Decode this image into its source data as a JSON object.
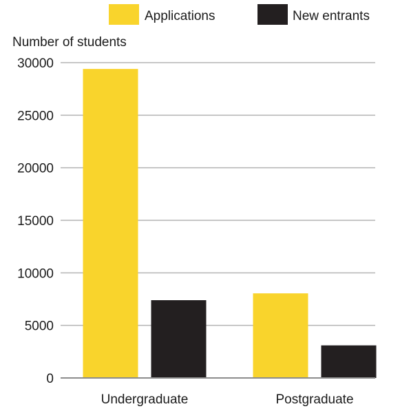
{
  "chart_data": {
    "type": "bar",
    "title": "",
    "xlabel": "",
    "ylabel": "Number of students",
    "categories": [
      "Undergraduate",
      "Postgraduate"
    ],
    "series": [
      {
        "name": "Applications",
        "values": [
          29400,
          8050
        ],
        "color": "#f9d42c"
      },
      {
        "name": "New entrants",
        "values": [
          7400,
          3100
        ],
        "color": "#231f20"
      }
    ],
    "ylim": [
      0,
      30000
    ],
    "yticks": [
      0,
      5000,
      10000,
      15000,
      20000,
      25000,
      30000
    ],
    "grid": true,
    "legend_position": "top-right"
  }
}
